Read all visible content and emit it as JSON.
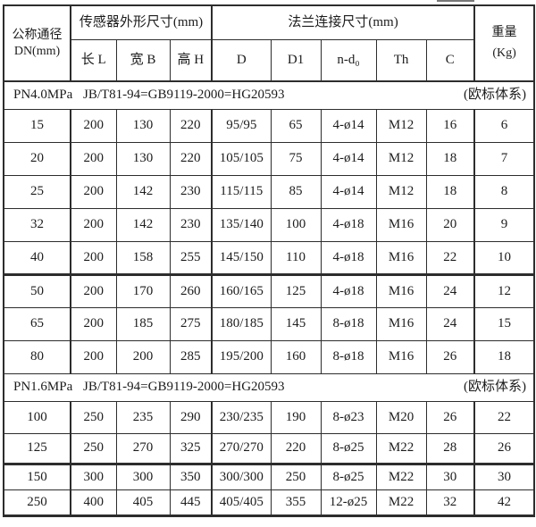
{
  "colors": {
    "border": "#2d2d2d",
    "text": "#1c1c1c",
    "background": "#ffffff"
  },
  "table": {
    "header": {
      "dn_line1": "公称通径",
      "dn_line2": "DN(mm)",
      "group_sensor": "传感器外形尺寸(mm)",
      "group_flange": "法兰连接尺寸(mm)",
      "weight_line1": "重量",
      "weight_line2": "(Kg)",
      "sub_length": "长 L",
      "sub_width": "宽 B",
      "sub_height": "高 H",
      "sub_d": "D",
      "sub_d1": "D1",
      "sub_nd0": "n-d₀",
      "sub_th": "Th",
      "sub_c": "C"
    },
    "sections": [
      {
        "pressure": "PN4.0MPa",
        "standard": "JB/T81-94=GB9119-2000=HG20593",
        "note": "(欧标体系)",
        "rows": [
          [
            "15",
            "200",
            "130",
            "220",
            "95/95",
            "65",
            "4-ø14",
            "M12",
            "16",
            "6"
          ],
          [
            "20",
            "200",
            "130",
            "220",
            "105/105",
            "75",
            "4-ø14",
            "M12",
            "18",
            "7"
          ],
          [
            "25",
            "200",
            "142",
            "230",
            "115/115",
            "85",
            "4-ø14",
            "M12",
            "18",
            "8"
          ],
          [
            "32",
            "200",
            "142",
            "230",
            "135/140",
            "100",
            "4-ø18",
            "M16",
            "20",
            "9"
          ],
          [
            "40",
            "200",
            "158",
            "255",
            "145/150",
            "110",
            "4-ø18",
            "M16",
            "22",
            "10"
          ],
          [
            "50",
            "200",
            "170",
            "260",
            "160/165",
            "125",
            "4-ø18",
            "M16",
            "24",
            "12"
          ],
          [
            "65",
            "200",
            "185",
            "275",
            "180/185",
            "145",
            "8-ø18",
            "M16",
            "24",
            "15"
          ],
          [
            "80",
            "200",
            "200",
            "285",
            "195/200",
            "160",
            "8-ø18",
            "M16",
            "26",
            "18"
          ]
        ]
      },
      {
        "pressure": "PN1.6MPa",
        "standard": "JB/T81-94=GB9119-2000=HG20593",
        "note": "(欧标体系)",
        "rows": [
          [
            "100",
            "250",
            "235",
            "290",
            "230/235",
            "190",
            "8-ø23",
            "M20",
            "26",
            "22"
          ],
          [
            "125",
            "250",
            "270",
            "325",
            "270/270",
            "220",
            "8-ø25",
            "M22",
            "28",
            "26"
          ],
          [
            "150",
            "300",
            "300",
            "350",
            "300/300",
            "250",
            "8-ø25",
            "M22",
            "30",
            "30"
          ],
          [
            "250",
            "400",
            "405",
            "445",
            "405/405",
            "355",
            "12-ø25",
            "M22",
            "32",
            "42"
          ]
        ]
      }
    ]
  }
}
